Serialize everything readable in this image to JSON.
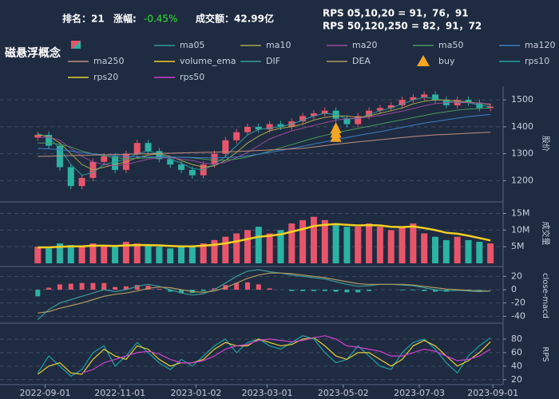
{
  "header": {
    "rank": "排名：21",
    "change_label": "涨幅:",
    "change_value": "-0.45%",
    "turnover": "成交额：42.99亿",
    "rps_short": "RPS 05,10,20 = 91，76，91",
    "rps_long": "RPS 50,120,250 = 82，91，72"
  },
  "chart_data": [
    {
      "type": "candlestick",
      "title": "磁悬浮概念",
      "ylabel": "股价",
      "x": [
        "2022-08-26",
        "2022-09-04",
        "2022-09-13",
        "2022-09-22",
        "2022-10-01",
        "2022-10-10",
        "2022-10-19",
        "2022-10-28",
        "2022-11-06",
        "2022-11-15",
        "2022-11-24",
        "2022-12-03",
        "2022-12-12",
        "2022-12-21",
        "2022-12-30",
        "2023-01-08",
        "2023-01-17",
        "2023-01-26",
        "2023-02-04",
        "2023-02-13",
        "2023-02-22",
        "2023-03-03",
        "2023-03-12",
        "2023-03-21",
        "2023-03-30",
        "2023-04-08",
        "2023-04-17",
        "2023-04-26",
        "2023-05-05",
        "2023-05-14",
        "2023-05-23",
        "2023-06-01",
        "2023-06-10",
        "2023-06-19",
        "2023-06-28",
        "2023-07-07",
        "2023-07-16",
        "2023-07-25",
        "2023-08-03",
        "2023-08-12",
        "2023-08-21",
        "2023-08-30"
      ],
      "open": [
        1360,
        1370,
        1330,
        1250,
        1180,
        1210,
        1270,
        1290,
        1240,
        1300,
        1340,
        1310,
        1280,
        1260,
        1240,
        1220,
        1260,
        1300,
        1350,
        1380,
        1400,
        1390,
        1410,
        1400,
        1420,
        1440,
        1450,
        1460,
        1430,
        1410,
        1440,
        1460,
        1470,
        1480,
        1500,
        1510,
        1520,
        1500,
        1480,
        1500,
        1490,
        1470
      ],
      "high": [
        1382,
        1382,
        1342,
        1262,
        1222,
        1282,
        1302,
        1302,
        1312,
        1352,
        1352,
        1322,
        1292,
        1272,
        1252,
        1272,
        1312,
        1362,
        1392,
        1412,
        1412,
        1422,
        1422,
        1432,
        1452,
        1462,
        1472,
        1472,
        1442,
        1452,
        1472,
        1482,
        1492,
        1512,
        1522,
        1532,
        1532,
        1512,
        1512,
        1512,
        1502,
        1487
      ],
      "low": [
        1348,
        1318,
        1238,
        1168,
        1168,
        1198,
        1258,
        1228,
        1228,
        1288,
        1298,
        1268,
        1248,
        1228,
        1208,
        1208,
        1248,
        1288,
        1338,
        1368,
        1378,
        1378,
        1388,
        1388,
        1408,
        1428,
        1438,
        1418,
        1398,
        1398,
        1428,
        1448,
        1458,
        1468,
        1488,
        1498,
        1488,
        1468,
        1468,
        1478,
        1458,
        1458
      ],
      "close": [
        1370,
        1330,
        1250,
        1180,
        1210,
        1270,
        1290,
        1240,
        1300,
        1340,
        1310,
        1280,
        1260,
        1240,
        1220,
        1260,
        1300,
        1350,
        1380,
        1400,
        1390,
        1410,
        1400,
        1420,
        1440,
        1450,
        1460,
        1430,
        1410,
        1440,
        1460,
        1470,
        1480,
        1500,
        1510,
        1520,
        1500,
        1480,
        1500,
        1490,
        1470,
        1475
      ],
      "up_color": "#e8556a",
      "down_color": "#2bb3a3",
      "series": [
        {
          "name": "ma05",
          "color": "#2a9d9d",
          "values": [
            1375,
            1360,
            1320,
            1260,
            1220,
            1230,
            1260,
            1270,
            1280,
            1300,
            1310,
            1300,
            1280,
            1265,
            1245,
            1240,
            1260,
            1290,
            1330,
            1370,
            1390,
            1395,
            1400,
            1410,
            1425,
            1440,
            1450,
            1445,
            1430,
            1430,
            1445,
            1460,
            1470,
            1485,
            1500,
            1510,
            1505,
            1495,
            1490,
            1490,
            1480,
            1475
          ]
        },
        {
          "name": "ma10",
          "color": "#a8a84a",
          "values": [
            1370,
            1365,
            1340,
            1300,
            1260,
            1240,
            1250,
            1260,
            1270,
            1285,
            1295,
            1300,
            1290,
            1275,
            1260,
            1250,
            1255,
            1275,
            1305,
            1340,
            1365,
            1385,
            1395,
            1400,
            1410,
            1425,
            1435,
            1440,
            1440,
            1435,
            1440,
            1450,
            1460,
            1470,
            1485,
            1495,
            1500,
            1500,
            1495,
            1492,
            1488,
            1482
          ]
        },
        {
          "name": "ma20",
          "color": "#9a4a9a",
          "values": [
            1360,
            1362,
            1350,
            1320,
            1290,
            1270,
            1260,
            1255,
            1260,
            1270,
            1280,
            1285,
            1285,
            1280,
            1275,
            1265,
            1262,
            1268,
            1285,
            1305,
            1330,
            1355,
            1370,
            1385,
            1395,
            1405,
            1415,
            1425,
            1430,
            1432,
            1436,
            1442,
            1450,
            1458,
            1468,
            1478,
            1486,
            1490,
            1492,
            1490,
            1488,
            1485
          ]
        },
        {
          "name": "ma50",
          "color": "#4a9a5a",
          "values": [
            1340,
            1340,
            1335,
            1325,
            1310,
            1300,
            1292,
            1285,
            1282,
            1283,
            1285,
            1287,
            1288,
            1287,
            1285,
            1280,
            1276,
            1276,
            1280,
            1288,
            1298,
            1310,
            1322,
            1334,
            1346,
            1358,
            1368,
            1378,
            1386,
            1394,
            1402,
            1410,
            1418,
            1426,
            1434,
            1442,
            1450,
            1456,
            1462,
            1466,
            1468,
            1470
          ]
        },
        {
          "name": "ma120",
          "color": "#3a7fc8",
          "values": [
            1320,
            1318,
            1315,
            1310,
            1305,
            1300,
            1296,
            1292,
            1290,
            1289,
            1288,
            1288,
            1288,
            1287,
            1286,
            1285,
            1285,
            1286,
            1288,
            1292,
            1298,
            1305,
            1312,
            1320,
            1328,
            1336,
            1344,
            1352,
            1360,
            1368,
            1375,
            1382,
            1390,
            1398,
            1406,
            1414,
            1420,
            1426,
            1432,
            1438,
            1442,
            1446
          ]
        },
        {
          "name": "ma250",
          "color": "#c09080",
          "values": [
            1290,
            1291,
            1292,
            1293,
            1294,
            1295,
            1296,
            1297,
            1298,
            1299,
            1300,
            1301,
            1302,
            1303,
            1304,
            1305,
            1306,
            1307,
            1308,
            1310,
            1312,
            1314,
            1316,
            1318,
            1320,
            1325,
            1330,
            1335,
            1340,
            1344,
            1348,
            1352,
            1356,
            1360,
            1364,
            1367,
            1370,
            1372,
            1374,
            1376,
            1378,
            1380
          ]
        }
      ],
      "markers": {
        "name": "buy",
        "color": "#f5a623",
        "x": [
          "2023-04-26",
          "2023-04-26",
          "2023-04-26"
        ],
        "values": [
          1362,
          1378,
          1394
        ]
      },
      "ylim": [
        1130,
        1545
      ],
      "yticks": [
        1200,
        1300,
        1400,
        1500
      ],
      "grid": true
    },
    {
      "type": "bar",
      "ylabel": "成交量",
      "up_color": "#e8556a",
      "down_color": "#2bb3a3",
      "values": [
        5000000,
        4500000,
        6000000,
        5500000,
        5000000,
        6000000,
        5500000,
        5000000,
        6500000,
        6000000,
        5500000,
        5000000,
        4500000,
        5000000,
        5000000,
        6000000,
        7000000,
        8000000,
        9000000,
        10000000,
        11000000,
        9000000,
        10000000,
        12000000,
        13000000,
        14000000,
        13000000,
        12000000,
        11000000,
        11000000,
        12000000,
        11000000,
        10000000,
        11000000,
        12000000,
        9000000,
        8000000,
        7000000,
        8000000,
        7000000,
        6500000,
        6000000
      ],
      "series": [
        {
          "name": "volume_ema",
          "color": "#f5d020",
          "values": [
            4800000,
            4800000,
            5000000,
            5100000,
            5100000,
            5300000,
            5300000,
            5200000,
            5400000,
            5500000,
            5500000,
            5400000,
            5200000,
            5100000,
            5100000,
            5300000,
            5600000,
            6000000,
            6600000,
            7300000,
            8000000,
            8300000,
            8700000,
            9500000,
            10300000,
            11200000,
            11600000,
            11800000,
            11600000,
            11400000,
            11500000,
            11400000,
            11000000,
            10900000,
            11100000,
            10600000,
            10000000,
            9200000,
            8900000,
            8300000,
            7600000,
            6900000
          ]
        }
      ],
      "ylim": [
        0,
        18000000
      ],
      "yticks": [
        {
          "value": 5000000,
          "label": "5M"
        },
        {
          "value": 10000000,
          "label": "10M"
        },
        {
          "value": 15000000,
          "label": "15M"
        }
      ],
      "grid": true
    },
    {
      "type": "line",
      "ylabel": "close-macd",
      "bars": {
        "up_color": "#e8556a",
        "down_color": "#2bb3a3",
        "values": [
          -10,
          3,
          8,
          9,
          10,
          10,
          10,
          4,
          5,
          7,
          6,
          1,
          -3,
          -5,
          -5,
          -2,
          2,
          7,
          10,
          11,
          8,
          2,
          0,
          -2,
          -2,
          -2,
          -2,
          -3,
          -4,
          -4,
          -2,
          0,
          0,
          -1,
          -1,
          -2,
          -3,
          -3,
          -1,
          -1,
          -1,
          0
        ]
      },
      "series": [
        {
          "name": "DIF",
          "color": "#3a9a9a",
          "values": [
            -45,
            -30,
            -20,
            -15,
            -10,
            -5,
            0,
            -3,
            0,
            5,
            8,
            5,
            0,
            -5,
            -8,
            -6,
            0,
            10,
            20,
            28,
            30,
            27,
            25,
            22,
            20,
            18,
            16,
            12,
            8,
            5,
            6,
            8,
            8,
            7,
            6,
            3,
            0,
            -2,
            -1,
            -2,
            -3,
            -2
          ]
        },
        {
          "name": "DEA",
          "color": "#b09a60",
          "values": [
            -35,
            -33,
            -28,
            -24,
            -20,
            -15,
            -10,
            -7,
            -5,
            -2,
            2,
            4,
            3,
            0,
            -3,
            -4,
            -2,
            3,
            10,
            17,
            22,
            25,
            25,
            24,
            22,
            20,
            18,
            15,
            12,
            9,
            8,
            8,
            8,
            8,
            7,
            5,
            3,
            1,
            0,
            -1,
            -2,
            -2
          ]
        }
      ],
      "ylim": [
        -48,
        30
      ],
      "yticks": [
        -40,
        -20,
        0,
        20
      ],
      "grid": true
    },
    {
      "type": "line",
      "ylabel": "RPS",
      "series": [
        {
          "name": "rps10",
          "color": "#1fa3a3",
          "values": [
            30,
            55,
            40,
            25,
            35,
            60,
            70,
            40,
            55,
            75,
            60,
            45,
            35,
            50,
            40,
            55,
            70,
            80,
            60,
            75,
            80,
            70,
            65,
            75,
            85,
            80,
            60,
            45,
            50,
            70,
            55,
            40,
            35,
            60,
            75,
            80,
            65,
            45,
            30,
            55,
            70,
            82
          ]
        },
        {
          "name": "rps20",
          "color": "#e8d030",
          "values": [
            28,
            40,
            45,
            30,
            28,
            50,
            65,
            55,
            50,
            70,
            65,
            50,
            40,
            45,
            45,
            50,
            65,
            75,
            70,
            70,
            80,
            75,
            70,
            72,
            80,
            82,
            70,
            55,
            50,
            60,
            60,
            50,
            40,
            50,
            70,
            78,
            70,
            55,
            40,
            48,
            60,
            76
          ]
        },
        {
          "name": "rps50",
          "color": "#d040d0",
          "values": [
            null,
            null,
            null,
            null,
            30,
            35,
            45,
            50,
            55,
            60,
            62,
            58,
            50,
            45,
            45,
            48,
            55,
            65,
            70,
            72,
            78,
            80,
            78,
            76,
            78,
            82,
            85,
            80,
            70,
            68,
            65,
            62,
            55,
            55,
            60,
            65,
            62,
            55,
            48,
            50,
            55,
            65
          ]
        }
      ],
      "ylim": [
        15,
        100
      ],
      "yticks": [
        20,
        40,
        60,
        80
      ],
      "grid": true,
      "xlim": [
        "2022-08-18",
        "2023-09-08"
      ],
      "xticks": [
        "2022-09-01",
        "2022-11-01",
        "2023-01-02",
        "2023-03-01",
        "2023-05-02",
        "2023-07-03",
        "2023-09-01"
      ]
    }
  ]
}
